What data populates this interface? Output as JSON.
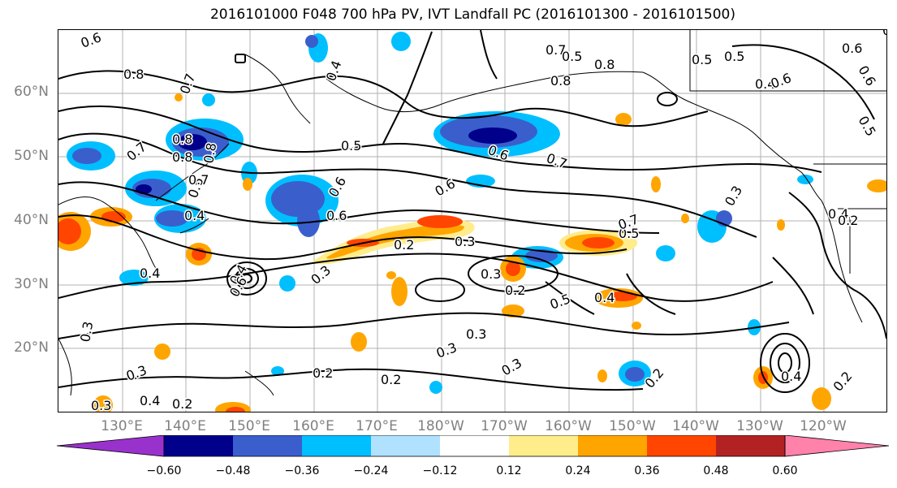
{
  "title": "2016101000 F048 700 hPa PV, IVT Landfall PC (2016101300 - 2016101500)",
  "lat_labels": [
    "60°N",
    "50°N",
    "40°N",
    "30°N",
    "20°N"
  ],
  "lon_labels": [
    "130°E",
    "140°E",
    "150°E",
    "160°E",
    "170°E",
    "180°W",
    "170°W",
    "160°W",
    "150°W",
    "140°W",
    "130°W",
    "120°W"
  ],
  "colorbar": {
    "ticks": [
      "−0.60",
      "−0.48",
      "−0.36",
      "−0.24",
      "−0.12",
      "0.12",
      "0.24",
      "0.36",
      "0.48",
      "0.60"
    ],
    "colors": [
      "#9932cc",
      "#00008b",
      "#3a5fcd",
      "#00bfff",
      "#b0e2ff",
      "#ffffff",
      "#ffec8b",
      "#ffa500",
      "#ff4500",
      "#b22222",
      "#ff82ab"
    ]
  },
  "contour_labels": [
    "0.6",
    "0.8",
    "0.7",
    "0.8",
    "0.7",
    "0.4",
    "0.8",
    "0.6",
    "0.7",
    "0.4",
    "0.4",
    "0.6",
    "0.5",
    "0.4",
    "0.6",
    "0.8",
    "0.6",
    "0.7",
    "0.6",
    "0.3",
    "0.5",
    "0.7",
    "0.3",
    "0.2",
    "0.5",
    "0.3",
    "0.3",
    "0.2",
    "0.3",
    "0.3",
    "0.2",
    "0.2",
    "0.8",
    "0.5",
    "0.5",
    "0.4",
    "0.6",
    "0.7",
    "0.8",
    "0.6",
    "0.6",
    "0.5",
    "0.3",
    "0.4",
    "0.3",
    "0.3",
    "0.2",
    "0.4",
    "0.2",
    "0.2",
    "0.2",
    "0.1",
    "0.6",
    "0.5",
    "0.4",
    "0.4",
    "0.3"
  ]
}
